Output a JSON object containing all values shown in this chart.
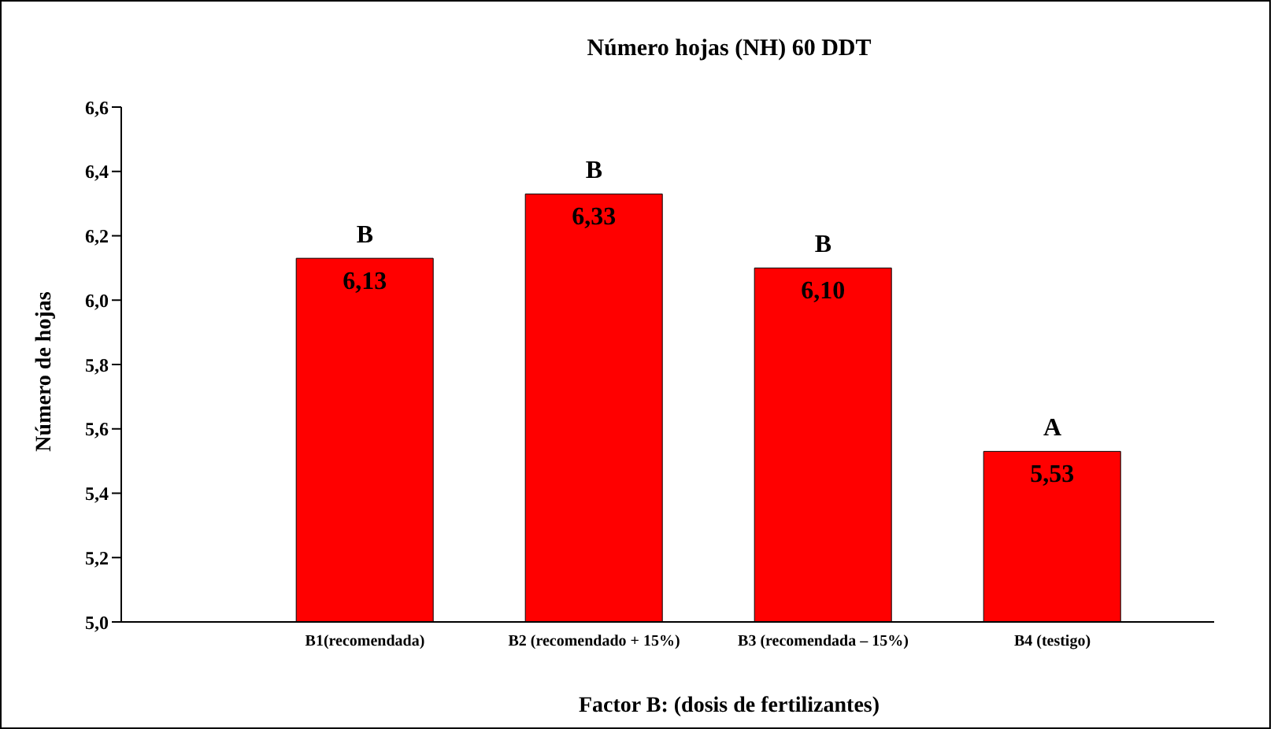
{
  "chart_data": {
    "type": "bar",
    "title": "Número hojas (NH) 60 DDT",
    "xlabel": "Factor B: (dosis de fertilizantes)",
    "ylabel": "Número de hojas",
    "categories": [
      "B1(recomendada)",
      "B2 (recomendado + 15%)",
      "B3 (recomendada – 15%)",
      "B4 (testigo)"
    ],
    "values": [
      6.13,
      6.33,
      6.1,
      5.53
    ],
    "color": "#ff0000",
    "value_labels": [
      "6,13",
      "6,33",
      "6,10",
      "5,53"
    ],
    "annotations": [
      {
        "text": "B",
        "x": "B1(recomendada)",
        "y": 6.13
      },
      {
        "text": "B",
        "x": "B2 (recomendado + 15%)",
        "y": 6.33
      },
      {
        "text": "B",
        "x": "B3 (recomendada – 15%)",
        "y": 6.1
      },
      {
        "text": "A",
        "x": "B4 (testigo)",
        "y": 5.53
      }
    ],
    "ylim": [
      5.0,
      6.6
    ],
    "yticks": [
      {
        "value": 5.0,
        "label": "5,0"
      },
      {
        "value": 5.2,
        "label": "5,2"
      },
      {
        "value": 5.4,
        "label": "5,4"
      },
      {
        "value": 5.6,
        "label": "5,6"
      },
      {
        "value": 5.8,
        "label": "5,8"
      },
      {
        "value": 6.0,
        "label": "6,0"
      },
      {
        "value": 6.2,
        "label": "6,2"
      },
      {
        "value": 6.4,
        "label": "6,4"
      },
      {
        "value": 6.6,
        "label": "6,6"
      }
    ],
    "grid": false,
    "legend": false
  }
}
